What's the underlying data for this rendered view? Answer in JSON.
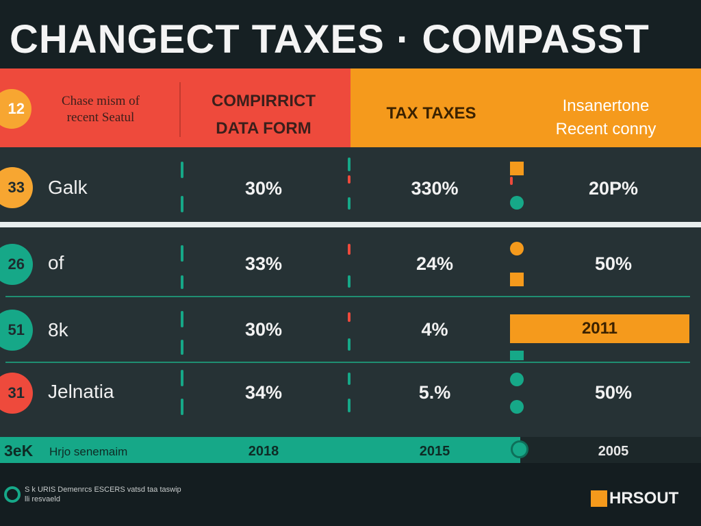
{
  "title": "CHANGECT TAXES · COMPASST",
  "header": {
    "badge": "12",
    "col0": [
      "Chase mism of",
      "recent Seatul"
    ],
    "col1": [
      "COMPIRRICT",
      "DATA FORM"
    ],
    "col2": "TAX TAXES",
    "col3": [
      "Insanertone",
      "Recent conny"
    ]
  },
  "rows": [
    {
      "badge": "33",
      "label": "Galk",
      "v1": "30%",
      "v2": "330%",
      "v3": "20P%"
    },
    {
      "badge": "26",
      "label": "of",
      "v1": "33%",
      "v2": "24%",
      "v3": "50%"
    },
    {
      "badge": "51",
      "label": "8k",
      "v1": "30%",
      "v2": "4%",
      "v3": "2011"
    },
    {
      "badge": "31",
      "label": "Jelnatia",
      "v1": "34%",
      "v2": "5.%",
      "v3": "50%"
    }
  ],
  "footer": {
    "big": "3eK",
    "label": "Hrjo senemaim",
    "y1": "2018",
    "y2": "2015",
    "y3": "2005"
  },
  "note": [
    "S k URIS Demenrcs ESCERS vatsd taa taswip",
    "lli resvaeld"
  ],
  "brand": "HRSOUT",
  "chart_data": {
    "type": "table",
    "title": "CHANGECT TAXES · COMPASST",
    "columns": [
      "Chase mism of recent Seatul",
      "COMPIRRICT DATA FORM",
      "TAX TAXES",
      "Insanertone Recent conny"
    ],
    "rows": [
      [
        "Galk",
        "30%",
        "330%",
        "20P%"
      ],
      [
        "of",
        "33%",
        "24%",
        "50%"
      ],
      [
        "8k",
        "30%",
        "4%",
        "2011"
      ],
      [
        "Jelnatia",
        "34%",
        "5.%",
        "50%"
      ],
      [
        "Hrjo senemaim",
        "2018",
        "2015",
        "2005"
      ]
    ]
  },
  "colors": {
    "red": "#ee4a3c",
    "orange": "#f59a1c",
    "teal": "#16a888",
    "panel": "#263235",
    "background": "#1f2b2e"
  }
}
